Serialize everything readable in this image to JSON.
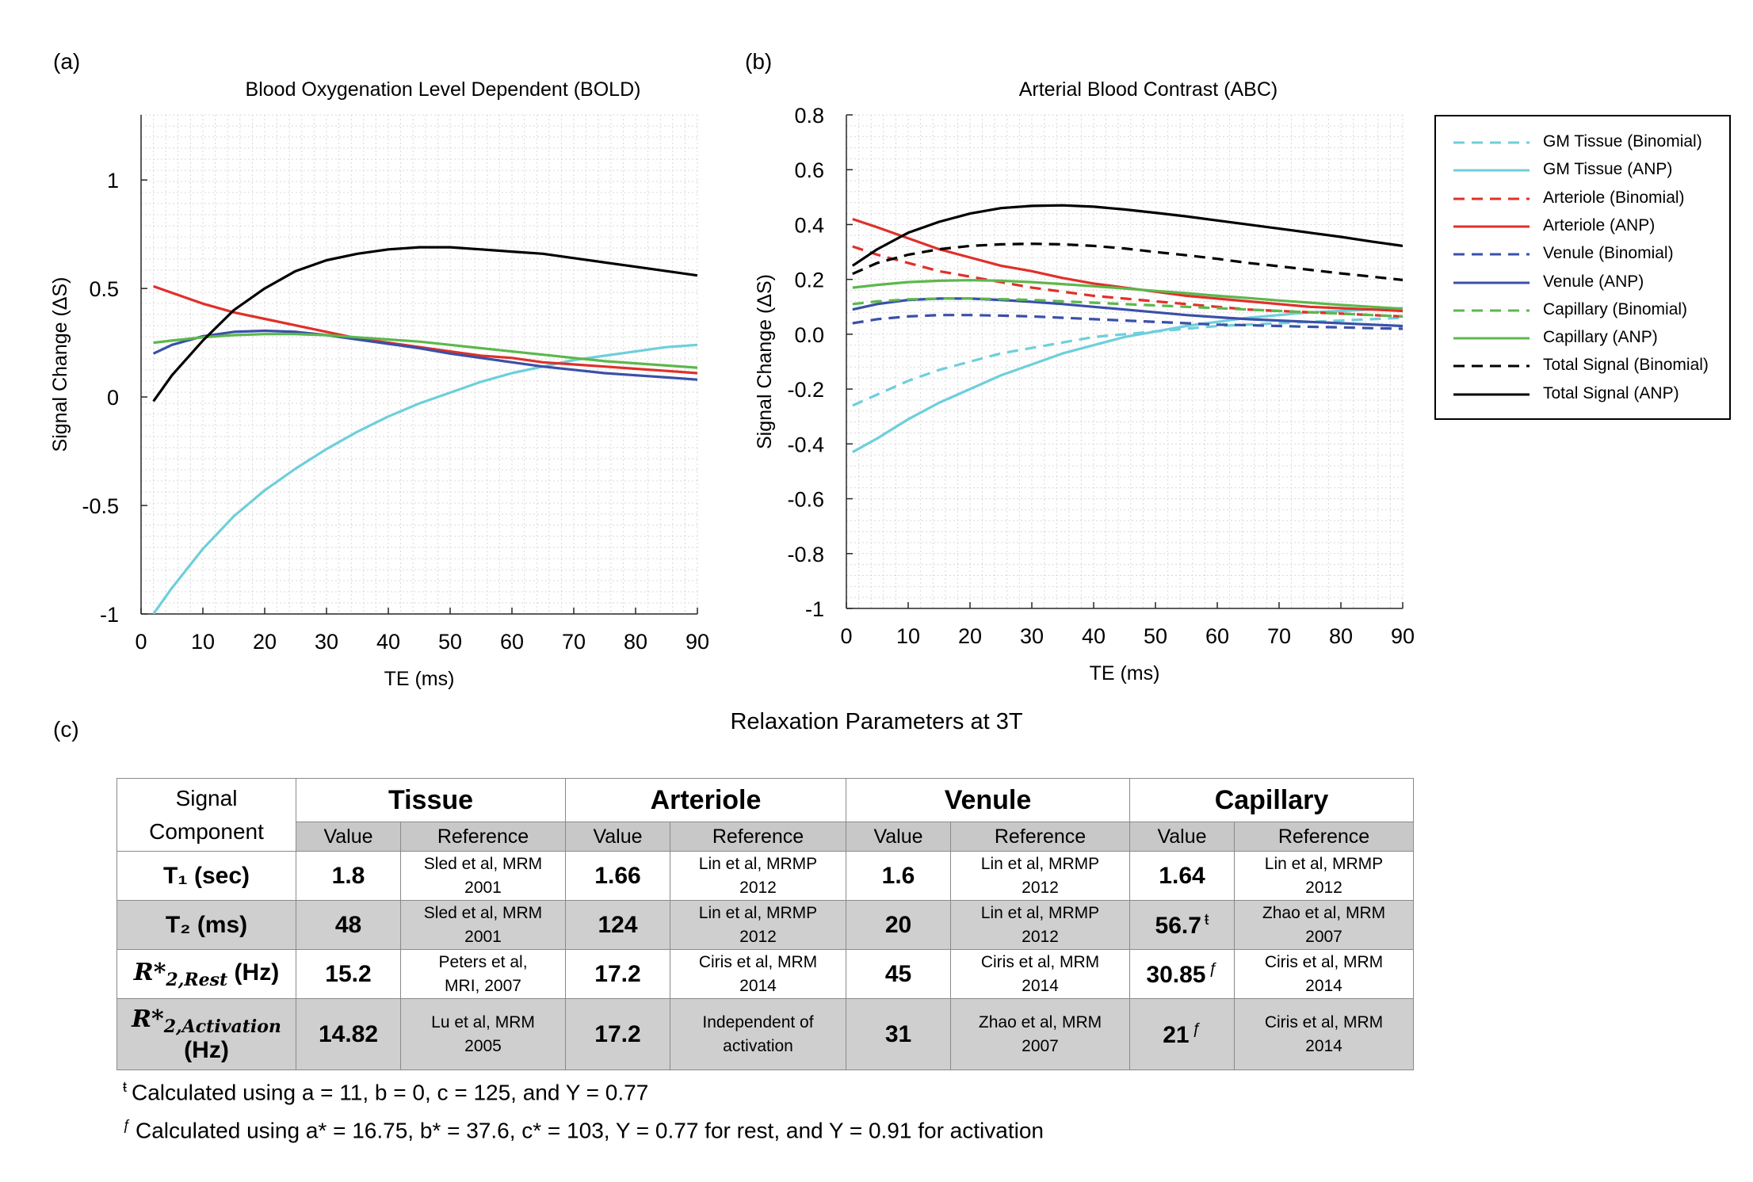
{
  "panel_labels": {
    "a": "(a)",
    "b": "(b)",
    "c": "(c)"
  },
  "chart_data": [
    {
      "id": "bold",
      "type": "line",
      "title": "Blood Oxygenation Level Dependent (BOLD)",
      "xlabel": "TE (ms)",
      "ylabel": "Signal Change (ΔS)",
      "xlim": [
        0,
        90
      ],
      "ylim": [
        -1,
        1.3
      ],
      "grid": true,
      "x_ticks": [
        0,
        10,
        20,
        30,
        40,
        50,
        60,
        70,
        80,
        90
      ],
      "y_ticks": [
        -1,
        -0.5,
        0,
        0.5,
        1
      ],
      "y_tick_labels": [
        "-1",
        "-0.5",
        "0",
        "0.5",
        "1"
      ],
      "x": [
        2,
        5,
        10,
        15,
        20,
        25,
        30,
        35,
        40,
        45,
        50,
        55,
        60,
        65,
        70,
        75,
        80,
        85,
        90
      ],
      "series": [
        {
          "name": "GM Tissue (ANP)",
          "color": "#6ecfdb",
          "dash": false,
          "values": [
            -1.0,
            -0.88,
            -0.7,
            -0.55,
            -0.43,
            -0.33,
            -0.24,
            -0.16,
            -0.09,
            -0.03,
            0.02,
            0.07,
            0.11,
            0.14,
            0.17,
            0.19,
            0.21,
            0.23,
            0.24
          ]
        },
        {
          "name": "Arteriole (ANP)",
          "color": "#e0302a",
          "dash": false,
          "values": [
            0.51,
            0.48,
            0.43,
            0.39,
            0.36,
            0.33,
            0.3,
            0.27,
            0.25,
            0.23,
            0.21,
            0.19,
            0.18,
            0.16,
            0.15,
            0.14,
            0.13,
            0.12,
            0.11
          ]
        },
        {
          "name": "Venule (ANP)",
          "color": "#3a50a8",
          "dash": false,
          "values": [
            0.2,
            0.24,
            0.28,
            0.3,
            0.305,
            0.3,
            0.285,
            0.265,
            0.245,
            0.225,
            0.2,
            0.18,
            0.16,
            0.14,
            0.125,
            0.11,
            0.1,
            0.09,
            0.08
          ]
        },
        {
          "name": "Capillary (ANP)",
          "color": "#5cb84c",
          "dash": false,
          "values": [
            0.25,
            0.26,
            0.275,
            0.285,
            0.29,
            0.29,
            0.285,
            0.275,
            0.265,
            0.255,
            0.24,
            0.225,
            0.21,
            0.195,
            0.18,
            0.165,
            0.155,
            0.145,
            0.135
          ]
        },
        {
          "name": "Total Signal (ANP)",
          "color": "#000000",
          "dash": false,
          "values": [
            -0.02,
            0.1,
            0.26,
            0.4,
            0.5,
            0.58,
            0.63,
            0.66,
            0.68,
            0.69,
            0.69,
            0.68,
            0.67,
            0.66,
            0.64,
            0.62,
            0.6,
            0.58,
            0.56
          ]
        }
      ]
    },
    {
      "id": "abc",
      "type": "line",
      "title": "Arterial Blood Contrast (ABC)",
      "xlabel": "TE (ms)",
      "ylabel": "Signal Change (ΔS)",
      "xlim": [
        0,
        90
      ],
      "ylim": [
        -1,
        0.8
      ],
      "grid": true,
      "x_ticks": [
        0,
        10,
        20,
        30,
        40,
        50,
        60,
        70,
        80,
        90
      ],
      "y_ticks": [
        -1,
        -0.8,
        -0.6,
        -0.4,
        -0.2,
        0,
        0.2,
        0.4,
        0.6,
        0.8
      ],
      "y_tick_labels": [
        "-1",
        "-0.8",
        "-0.6",
        "-0.4",
        "-0.2",
        "0.0",
        "0.2",
        "0.4",
        "0.6",
        "0.8"
      ],
      "x": [
        1,
        5,
        10,
        15,
        20,
        25,
        30,
        35,
        40,
        45,
        50,
        55,
        60,
        65,
        70,
        75,
        80,
        85,
        90
      ],
      "series": [
        {
          "name": "GM Tissue (Binomial)",
          "color": "#6ecfdb",
          "dash": true,
          "values": [
            -0.26,
            -0.22,
            -0.17,
            -0.13,
            -0.1,
            -0.07,
            -0.05,
            -0.03,
            -0.01,
            0.0,
            0.01,
            0.02,
            0.03,
            0.035,
            0.04,
            0.045,
            0.05,
            0.055,
            0.06
          ]
        },
        {
          "name": "GM Tissue (ANP)",
          "color": "#6ecfdb",
          "dash": false,
          "values": [
            -0.43,
            -0.38,
            -0.31,
            -0.25,
            -0.2,
            -0.15,
            -0.11,
            -0.07,
            -0.04,
            -0.01,
            0.01,
            0.03,
            0.045,
            0.06,
            0.07,
            0.08,
            0.085,
            0.09,
            0.095
          ]
        },
        {
          "name": "Arteriole (Binomial)",
          "color": "#e0302a",
          "dash": true,
          "values": [
            0.32,
            0.29,
            0.26,
            0.23,
            0.21,
            0.19,
            0.17,
            0.155,
            0.14,
            0.13,
            0.12,
            0.11,
            0.1,
            0.09,
            0.085,
            0.08,
            0.075,
            0.07,
            0.065
          ]
        },
        {
          "name": "Arteriole (ANP)",
          "color": "#e0302a",
          "dash": false,
          "values": [
            0.42,
            0.39,
            0.35,
            0.31,
            0.28,
            0.25,
            0.23,
            0.205,
            0.185,
            0.17,
            0.155,
            0.14,
            0.13,
            0.12,
            0.11,
            0.1,
            0.095,
            0.09,
            0.085
          ]
        },
        {
          "name": "Venule (Binomial)",
          "color": "#3a50a8",
          "dash": true,
          "values": [
            0.04,
            0.055,
            0.065,
            0.07,
            0.07,
            0.068,
            0.065,
            0.06,
            0.055,
            0.05,
            0.045,
            0.04,
            0.035,
            0.033,
            0.03,
            0.027,
            0.025,
            0.022,
            0.02
          ]
        },
        {
          "name": "Venule (ANP)",
          "color": "#3a50a8",
          "dash": false,
          "values": [
            0.09,
            0.11,
            0.125,
            0.13,
            0.13,
            0.125,
            0.118,
            0.11,
            0.1,
            0.09,
            0.08,
            0.07,
            0.062,
            0.055,
            0.05,
            0.045,
            0.04,
            0.035,
            0.03
          ]
        },
        {
          "name": "Capillary (Binomial)",
          "color": "#5cb84c",
          "dash": true,
          "values": [
            0.11,
            0.12,
            0.127,
            0.13,
            0.13,
            0.128,
            0.125,
            0.12,
            0.115,
            0.11,
            0.105,
            0.1,
            0.095,
            0.09,
            0.085,
            0.08,
            0.075,
            0.07,
            0.065
          ]
        },
        {
          "name": "Capillary (ANP)",
          "color": "#5cb84c",
          "dash": false,
          "values": [
            0.17,
            0.18,
            0.19,
            0.195,
            0.197,
            0.195,
            0.19,
            0.183,
            0.175,
            0.167,
            0.158,
            0.15,
            0.14,
            0.132,
            0.123,
            0.115,
            0.107,
            0.1,
            0.093
          ]
        },
        {
          "name": "Total Signal (Binomial)",
          "color": "#000000",
          "dash": true,
          "values": [
            0.22,
            0.26,
            0.29,
            0.31,
            0.322,
            0.328,
            0.33,
            0.328,
            0.322,
            0.313,
            0.3,
            0.288,
            0.275,
            0.26,
            0.248,
            0.235,
            0.222,
            0.21,
            0.198
          ]
        },
        {
          "name": "Total Signal (ANP)",
          "color": "#000000",
          "dash": false,
          "values": [
            0.25,
            0.31,
            0.37,
            0.41,
            0.44,
            0.46,
            0.468,
            0.47,
            0.465,
            0.455,
            0.443,
            0.43,
            0.415,
            0.4,
            0.385,
            0.37,
            0.355,
            0.338,
            0.322
          ]
        }
      ]
    }
  ],
  "legend": [
    {
      "label": "GM Tissue (Binomial)",
      "color": "#6ecfdb",
      "dash": true
    },
    {
      "label": "GM Tissue (ANP)",
      "color": "#6ecfdb",
      "dash": false
    },
    {
      "label": "Arteriole (Binomial)",
      "color": "#e0302a",
      "dash": true
    },
    {
      "label": "Arteriole (ANP)",
      "color": "#e0302a",
      "dash": false
    },
    {
      "label": "Venule (Binomial)",
      "color": "#3a50a8",
      "dash": true
    },
    {
      "label": "Venule  (ANP)",
      "color": "#3a50a8",
      "dash": false
    },
    {
      "label": "Capillary (Binomial)",
      "color": "#5cb84c",
      "dash": true
    },
    {
      "label": "Capillary  (ANP)",
      "color": "#5cb84c",
      "dash": false
    },
    {
      "label": "Total Signal (Binomial)",
      "color": "#000000",
      "dash": true
    },
    {
      "label": "Total Signal (ANP)",
      "color": "#000000",
      "dash": false
    }
  ],
  "table": {
    "title": "Relaxation Parameters at 3T",
    "corner_line1": "Signal",
    "corner_line2": "Component",
    "groups": [
      "Tissue",
      "Arteriole",
      "Venule",
      "Capillary"
    ],
    "sub_value": "Value",
    "sub_reference": "Reference",
    "rows": [
      {
        "label": "T₁ (sec)",
        "cells": [
          {
            "value": "1.8",
            "sup": "",
            "ref1": "Sled et al, MRM",
            "ref2": "2001"
          },
          {
            "value": "1.66",
            "sup": "",
            "ref1": "Lin et al, MRMP",
            "ref2": "2012"
          },
          {
            "value": "1.6",
            "sup": "",
            "ref1": "Lin et al, MRMP",
            "ref2": "2012"
          },
          {
            "value": "1.64",
            "sup": "",
            "ref1": "Lin et al, MRMP",
            "ref2": "2012"
          }
        ]
      },
      {
        "label": "T₂ (ms)",
        "cells": [
          {
            "value": "48",
            "sup": "",
            "ref1": "Sled et al, MRM",
            "ref2": "2001"
          },
          {
            "value": "124",
            "sup": "",
            "ref1": "Lin et al, MRMP",
            "ref2": "2012"
          },
          {
            "value": "20",
            "sup": "",
            "ref1": "Lin et al, MRMP",
            "ref2": "2012"
          },
          {
            "value": "56.7",
            "sup": "ŧ",
            "ref1": "Zhao et al, MRM",
            "ref2": "2007"
          }
        ]
      },
      {
        "label_sym": "R*",
        "label_sub": "2,Rest",
        "label_unit": "(Hz)",
        "cells": [
          {
            "value": "15.2",
            "sup": "",
            "ref1": "Peters et al,",
            "ref2": "MRI, 2007"
          },
          {
            "value": "17.2",
            "sup": "",
            "ref1": "Ciris et al, MRM",
            "ref2": "2014"
          },
          {
            "value": "45",
            "sup": "",
            "ref1": "Ciris et al, MRM",
            "ref2": "2014"
          },
          {
            "value": "30.85",
            "sup": "ƒ",
            "ref1": "Ciris et al, MRM",
            "ref2": "2014"
          }
        ]
      },
      {
        "label_sym": "R*",
        "label_sub": "2,Activation",
        "label_unit": "(Hz)",
        "cells": [
          {
            "value": "14.82",
            "sup": "",
            "ref1": "Lu et al, MRM",
            "ref2": "2005"
          },
          {
            "value": "17.2",
            "sup": "",
            "ref1": "Independent of",
            "ref2": "activation"
          },
          {
            "value": "31",
            "sup": "",
            "ref1": "Zhao et al, MRM",
            "ref2": "2007"
          },
          {
            "value": "21",
            "sup": "ƒ",
            "ref1": "Ciris et al, MRM",
            "ref2": "2014"
          }
        ]
      }
    ]
  },
  "footnotes": [
    {
      "mark": "ŧ",
      "text": "Calculated using a = 11, b = 0, c = 125, and Y = 0.77"
    },
    {
      "mark": "ƒ",
      "text": "Calculated using a* = 16.75, b* = 37.6, c* = 103, Y = 0.77 for rest, and Y = 0.91 for activation"
    }
  ]
}
